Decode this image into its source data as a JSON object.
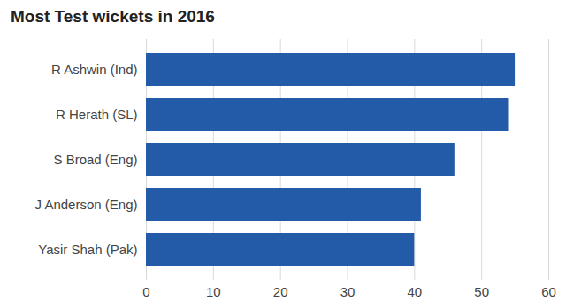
{
  "chart_data": {
    "type": "bar",
    "title": "Most Test wickets in 2016",
    "categories": [
      "R Ashwin (Ind)",
      "R Herath (SL)",
      "S Broad (Eng)",
      "J Anderson (Eng)",
      "Yasir Shah (Pak)"
    ],
    "values": [
      55,
      54,
      46,
      41,
      40
    ],
    "color": "#245ba8",
    "orientation": "horizontal",
    "xlim": [
      0,
      60
    ],
    "xticks": [
      0,
      10,
      20,
      30,
      40,
      50,
      60
    ],
    "grid": true
  }
}
